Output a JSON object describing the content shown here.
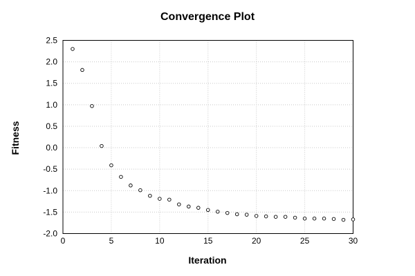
{
  "chart_data": {
    "type": "scatter",
    "title": "Convergence Plot",
    "xlabel": "Iteration",
    "ylabel": "Fitness",
    "x": [
      1,
      2,
      3,
      4,
      5,
      6,
      7,
      8,
      9,
      10,
      11,
      12,
      13,
      14,
      15,
      16,
      17,
      18,
      19,
      20,
      21,
      22,
      23,
      24,
      25,
      26,
      27,
      28,
      29,
      30
    ],
    "y": [
      2.3,
      1.81,
      0.97,
      0.04,
      -0.41,
      -0.68,
      -0.88,
      -0.99,
      -1.12,
      -1.19,
      -1.21,
      -1.32,
      -1.37,
      -1.4,
      -1.45,
      -1.49,
      -1.52,
      -1.55,
      -1.56,
      -1.59,
      -1.6,
      -1.61,
      -1.61,
      -1.63,
      -1.65,
      -1.65,
      -1.65,
      -1.66,
      -1.68,
      -1.67
    ],
    "xlim": [
      0,
      30
    ],
    "ylim": [
      -2.0,
      2.5
    ],
    "xticks": [
      0,
      5,
      10,
      15,
      20,
      25,
      30
    ],
    "yticks": [
      2.5,
      2.0,
      1.5,
      1.0,
      0.5,
      0.0,
      -0.5,
      -1.0,
      -1.5,
      -2.0
    ],
    "grid": true,
    "legend": "none",
    "marker": "open-circle",
    "colors": {
      "background": "#ffffff",
      "text": "#000000",
      "frame": "#000000",
      "grid": "#c8c8c8",
      "marker_stroke": "#000000",
      "marker_fill": "#ffffff"
    }
  }
}
